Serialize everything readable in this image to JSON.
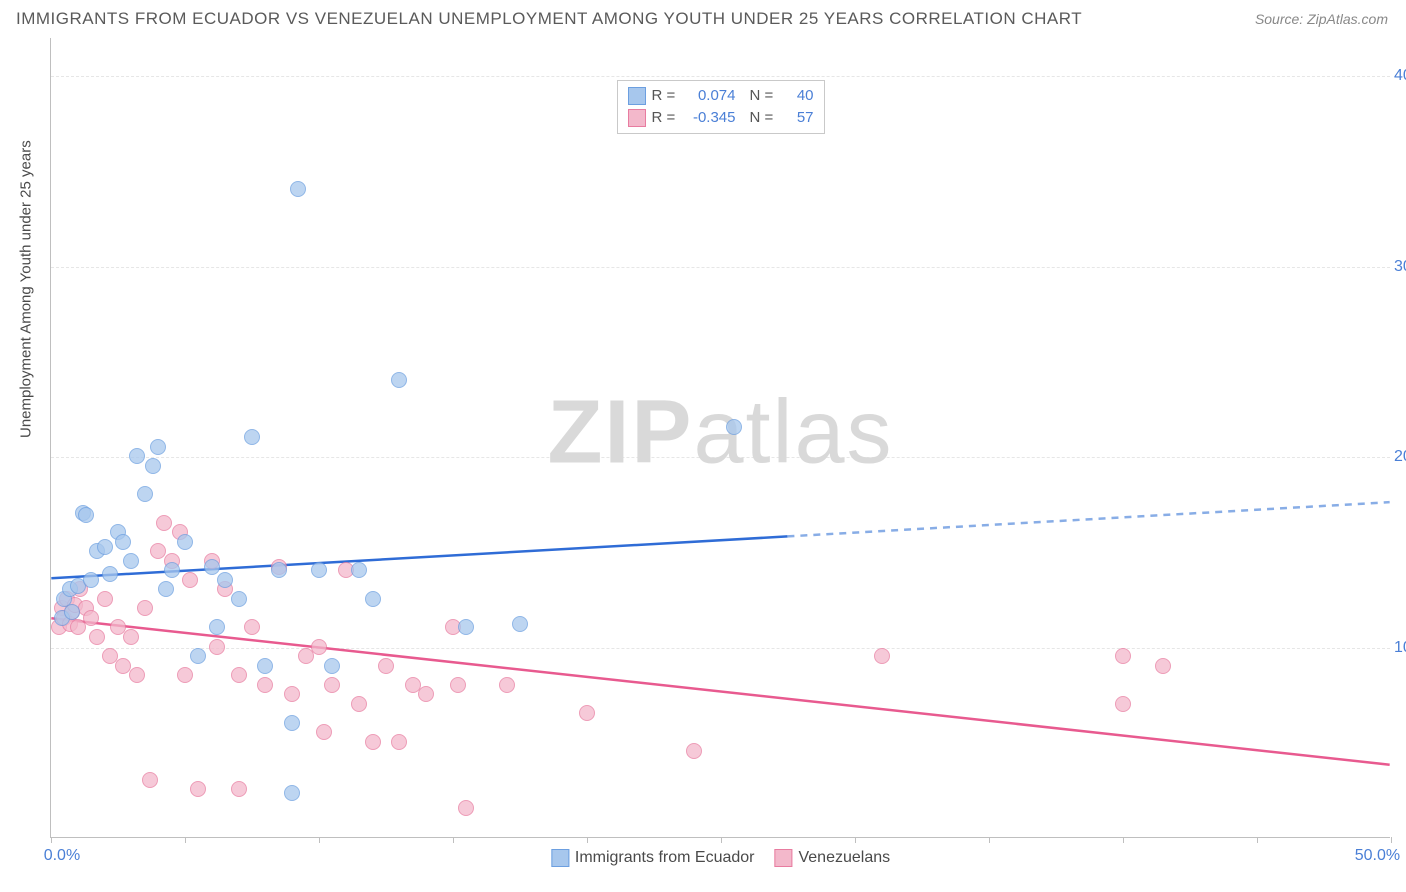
{
  "header": {
    "title": "IMMIGRANTS FROM ECUADOR VS VENEZUELAN UNEMPLOYMENT AMONG YOUTH UNDER 25 YEARS CORRELATION CHART",
    "source": "Source: ZipAtlas.com"
  },
  "watermark": {
    "bold": "ZIP",
    "light": "atlas"
  },
  "chart": {
    "type": "scatter",
    "xlim": [
      0,
      50
    ],
    "ylim": [
      0,
      42
    ],
    "background_color": "#ffffff",
    "grid_color": "#e6e6e6",
    "axis_color": "#bfbfbf",
    "tick_color": "#4a7fd6",
    "ylabel": "Unemployment Among Youth under 25 years",
    "yticks": [
      10,
      20,
      30,
      40
    ],
    "ytick_labels": [
      "10.0%",
      "20.0%",
      "30.0%",
      "40.0%"
    ],
    "xticks": [
      0,
      5,
      10,
      15,
      20,
      25,
      30,
      35,
      40,
      45,
      50
    ],
    "xtick_labels": {
      "0": "0.0%",
      "50": "50.0%"
    },
    "label_fontsize": 15,
    "tick_fontsize": 16,
    "point_radius": 8,
    "point_border_width": 1.5,
    "point_fill_opacity": 0.35,
    "line_width": 2.5
  },
  "series": {
    "ecuador": {
      "label": "Immigrants from Ecuador",
      "R": "0.074",
      "N": "40",
      "color_border": "#6c9fe0",
      "color_fill": "#a7c7ed",
      "regression": {
        "solid": {
          "x1": 0,
          "y1": 13.6,
          "x2": 27.5,
          "y2": 15.8
        },
        "dashed": {
          "x1": 27.5,
          "y1": 15.8,
          "x2": 50,
          "y2": 17.6
        },
        "style_solid": "solid",
        "style_dashed": "dashed",
        "solid_color": "#2f6cd6",
        "dashed_color": "#88ade6"
      },
      "points": [
        [
          0.4,
          11.5
        ],
        [
          0.5,
          12.5
        ],
        [
          0.7,
          13.0
        ],
        [
          0.8,
          11.8
        ],
        [
          1.0,
          13.2
        ],
        [
          1.2,
          17.0
        ],
        [
          1.3,
          16.9
        ],
        [
          1.5,
          13.5
        ],
        [
          1.7,
          15.0
        ],
        [
          2.0,
          15.2
        ],
        [
          2.2,
          13.8
        ],
        [
          2.5,
          16.0
        ],
        [
          2.7,
          15.5
        ],
        [
          3.0,
          14.5
        ],
        [
          3.2,
          20.0
        ],
        [
          3.5,
          18.0
        ],
        [
          3.8,
          19.5
        ],
        [
          4.0,
          20.5
        ],
        [
          4.3,
          13.0
        ],
        [
          4.5,
          14.0
        ],
        [
          5.0,
          15.5
        ],
        [
          5.5,
          9.5
        ],
        [
          6.0,
          14.2
        ],
        [
          6.2,
          11.0
        ],
        [
          6.5,
          13.5
        ],
        [
          7.0,
          12.5
        ],
        [
          7.5,
          21.0
        ],
        [
          8.0,
          9.0
        ],
        [
          8.5,
          14.0
        ],
        [
          9.0,
          6.0
        ],
        [
          9.0,
          2.3
        ],
        [
          9.2,
          34.0
        ],
        [
          10.0,
          14.0
        ],
        [
          10.5,
          9.0
        ],
        [
          11.5,
          14.0
        ],
        [
          12.0,
          12.5
        ],
        [
          13.0,
          24.0
        ],
        [
          15.5,
          11.0
        ],
        [
          17.5,
          11.2
        ],
        [
          25.5,
          21.5
        ]
      ]
    },
    "venezuela": {
      "label": "Venezuelans",
      "R": "-0.345",
      "N": "57",
      "color_border": "#e87ca0",
      "color_fill": "#f3b8cb",
      "regression": {
        "solid": {
          "x1": 0,
          "y1": 11.5,
          "x2": 50,
          "y2": 3.8
        },
        "solid_color": "#e85a8f"
      },
      "points": [
        [
          0.3,
          11.0
        ],
        [
          0.4,
          12.0
        ],
        [
          0.5,
          11.5
        ],
        [
          0.6,
          12.5
        ],
        [
          0.7,
          11.2
        ],
        [
          0.8,
          11.8
        ],
        [
          0.9,
          12.2
        ],
        [
          1.0,
          11.0
        ],
        [
          1.1,
          13.0
        ],
        [
          1.3,
          12.0
        ],
        [
          1.5,
          11.5
        ],
        [
          1.7,
          10.5
        ],
        [
          2.0,
          12.5
        ],
        [
          2.2,
          9.5
        ],
        [
          2.5,
          11.0
        ],
        [
          2.7,
          9.0
        ],
        [
          3.0,
          10.5
        ],
        [
          3.2,
          8.5
        ],
        [
          3.5,
          12.0
        ],
        [
          3.7,
          3.0
        ],
        [
          4.0,
          15.0
        ],
        [
          4.2,
          16.5
        ],
        [
          4.5,
          14.5
        ],
        [
          4.8,
          16.0
        ],
        [
          5.0,
          8.5
        ],
        [
          5.2,
          13.5
        ],
        [
          5.5,
          2.5
        ],
        [
          6.0,
          14.5
        ],
        [
          6.2,
          10.0
        ],
        [
          6.5,
          13.0
        ],
        [
          7.0,
          2.5
        ],
        [
          7.0,
          8.5
        ],
        [
          7.5,
          11.0
        ],
        [
          8.0,
          8.0
        ],
        [
          8.5,
          14.2
        ],
        [
          9.0,
          7.5
        ],
        [
          9.5,
          9.5
        ],
        [
          10.0,
          10.0
        ],
        [
          10.2,
          5.5
        ],
        [
          10.5,
          8.0
        ],
        [
          11.0,
          14.0
        ],
        [
          11.5,
          7.0
        ],
        [
          12.0,
          5.0
        ],
        [
          12.5,
          9.0
        ],
        [
          13.0,
          5.0
        ],
        [
          13.5,
          8.0
        ],
        [
          14.0,
          7.5
        ],
        [
          15.0,
          11.0
        ],
        [
          15.2,
          8.0
        ],
        [
          15.5,
          1.5
        ],
        [
          17.0,
          8.0
        ],
        [
          20.0,
          6.5
        ],
        [
          24.0,
          4.5
        ],
        [
          31.0,
          9.5
        ],
        [
          40.0,
          9.5
        ],
        [
          40.0,
          7.0
        ],
        [
          41.5,
          9.0
        ]
      ]
    }
  },
  "legend_top": {
    "r_label": "R =",
    "n_label": "N ="
  }
}
